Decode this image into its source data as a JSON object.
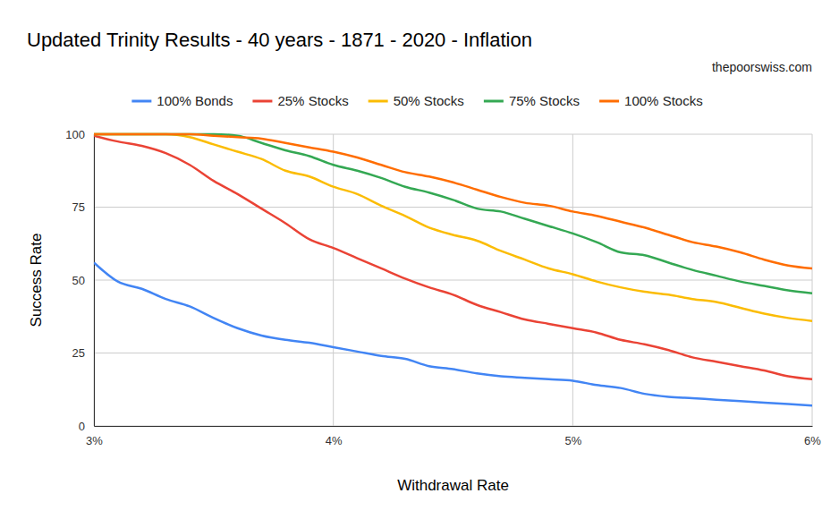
{
  "chart_data": {
    "type": "line",
    "title": "Updated Trinity Results - 40 years - 1871 - 2020 - Inflation",
    "subtitle": "thepoorswiss.com",
    "x_label": "Withdrawal Rate",
    "y_label": "Success Rate",
    "x": [
      3,
      3.1,
      3.2,
      3.3,
      3.4,
      3.5,
      3.6,
      3.7,
      3.8,
      3.9,
      4,
      4.1,
      4.2,
      4.3,
      4.4,
      4.5,
      4.6,
      4.7,
      4.8,
      4.9,
      5,
      5.1,
      5.2,
      5.3,
      5.4,
      5.5,
      5.6,
      5.7,
      5.8,
      5.9,
      6
    ],
    "xlim": [
      3,
      6
    ],
    "xticks": [
      {
        "value": 3,
        "label": "3%"
      },
      {
        "value": 4,
        "label": "4%"
      },
      {
        "value": 5,
        "label": "5%"
      },
      {
        "value": 6,
        "label": "6%"
      }
    ],
    "ylim": [
      0,
      100
    ],
    "yticks": [
      0,
      25,
      50,
      75,
      100
    ],
    "grid": true,
    "legend": "top",
    "series": [
      {
        "name": "100% Bonds",
        "color": "#4285f4",
        "values": [
          56,
          49.5,
          47,
          43.5,
          41,
          37,
          33.5,
          31,
          29.5,
          28.5,
          27,
          25.5,
          24,
          23,
          20.5,
          19.5,
          18,
          17,
          16.5,
          16,
          15.5,
          14,
          13,
          11,
          10,
          9.5,
          9,
          8.5,
          8,
          7.5,
          7
        ]
      },
      {
        "name": "25% Stocks",
        "color": "#ea4335",
        "values": [
          99.5,
          97.5,
          96,
          93.5,
          89.5,
          84,
          79.5,
          74.5,
          69.5,
          64,
          61,
          57.5,
          54,
          50.5,
          47.5,
          45,
          41.5,
          39,
          36.5,
          35,
          33.5,
          32,
          29.5,
          28,
          26,
          23.5,
          22,
          20.5,
          19,
          17,
          16
        ]
      },
      {
        "name": "50% Stocks",
        "color": "#fbbc04",
        "values": [
          100,
          100,
          100,
          100,
          99,
          96.5,
          94,
          91.5,
          87.5,
          85.5,
          82,
          79.5,
          75.5,
          72,
          68,
          65.5,
          63.5,
          60,
          57,
          54,
          52,
          49.5,
          47.5,
          46,
          45,
          43.5,
          42.5,
          40.5,
          38.5,
          37,
          36
        ]
      },
      {
        "name": "75% Stocks",
        "color": "#34a853",
        "values": [
          100,
          100,
          100,
          100,
          100,
          100,
          99.5,
          97,
          94.5,
          92.5,
          89.5,
          87.5,
          85,
          82,
          80,
          77.5,
          74.5,
          73.5,
          71,
          68.5,
          66,
          63,
          59.5,
          58.5,
          56,
          53.5,
          51.5,
          49.5,
          48,
          46.5,
          45.5
        ]
      },
      {
        "name": "100% Stocks",
        "color": "#ff6d01",
        "values": [
          100,
          100,
          100,
          100,
          100,
          99.5,
          99,
          98.5,
          97,
          95.5,
          94,
          92,
          89.5,
          87,
          85.5,
          83.5,
          81,
          78.5,
          76.5,
          75.5,
          73.5,
          72,
          70,
          68,
          65.5,
          63,
          61.5,
          59.5,
          57,
          55,
          54
        ]
      }
    ]
  }
}
